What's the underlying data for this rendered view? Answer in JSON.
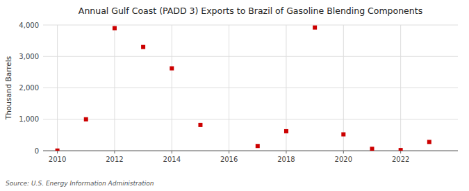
{
  "chart_data": {
    "type": "scatter",
    "title": "Annual Gulf Coast (PADD 3) Exports to Brazil of Gasoline Blending Components",
    "ylabel": "Thousand Barrels",
    "source": "Source: U.S. Energy Information Administration",
    "x": [
      2010,
      2011,
      2012,
      2013,
      2014,
      2015,
      2017,
      2018,
      2019,
      2020,
      2021,
      2022,
      2023
    ],
    "values": [
      5,
      1000,
      3900,
      3300,
      2620,
      820,
      150,
      620,
      3920,
      520,
      60,
      20,
      280
    ],
    "color": "#cc0000",
    "marker": "square",
    "xlim": [
      2009.5,
      2024.0
    ],
    "xticks": [
      2010,
      2012,
      2014,
      2016,
      2018,
      2020,
      2022
    ],
    "ylim": [
      0,
      4000
    ],
    "yticks": [
      0,
      {
        "value": 1000,
        "label": "1,000"
      },
      {
        "value": 2000,
        "label": "2,000"
      },
      {
        "value": 3000,
        "label": "3,000"
      },
      {
        "value": 4000,
        "label": "4,000"
      }
    ],
    "grid": true
  }
}
